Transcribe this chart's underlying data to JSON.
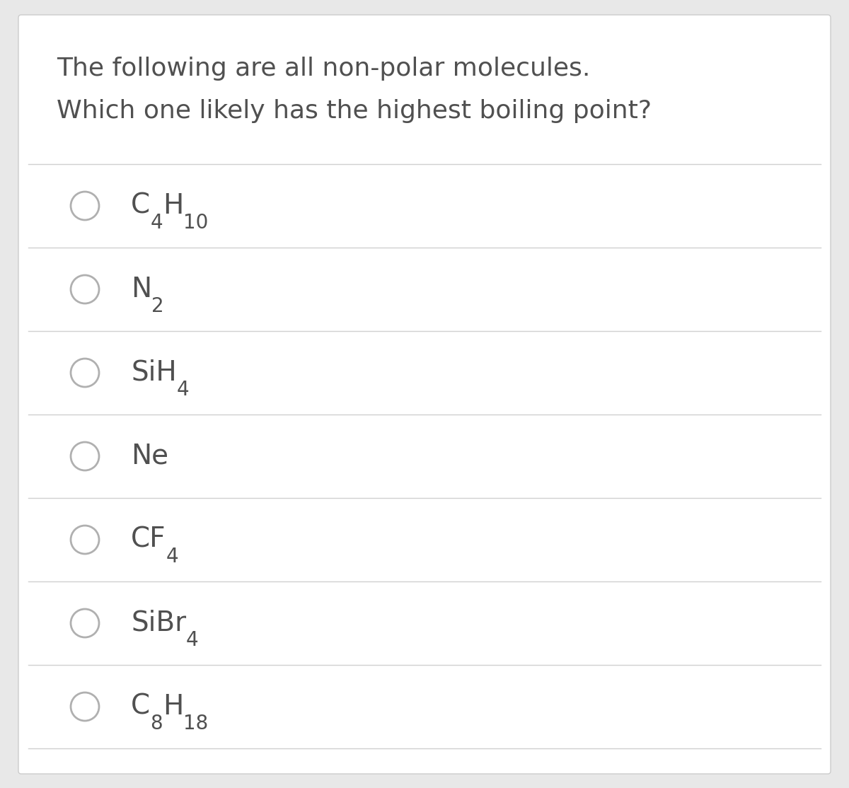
{
  "title_line1": "The following are all non-polar molecules.",
  "title_line2": "Which one likely has the highest boiling point?",
  "options": [
    [
      {
        "t": "C",
        "s": false
      },
      {
        "t": "4",
        "s": true
      },
      {
        "t": "H",
        "s": false
      },
      {
        "t": "10",
        "s": true
      }
    ],
    [
      {
        "t": "N",
        "s": false
      },
      {
        "t": "2",
        "s": true
      }
    ],
    [
      {
        "t": "SiH",
        "s": false
      },
      {
        "t": "4",
        "s": true
      }
    ],
    [
      {
        "t": "Ne",
        "s": false
      }
    ],
    [
      {
        "t": "CF",
        "s": false
      },
      {
        "t": "4",
        "s": true
      }
    ],
    [
      {
        "t": "SiBr",
        "s": false
      },
      {
        "t": "4",
        "s": true
      }
    ],
    [
      {
        "t": "C",
        "s": false
      },
      {
        "t": "8",
        "s": true
      },
      {
        "t": "H",
        "s": false
      },
      {
        "t": "18",
        "s": true
      }
    ]
  ],
  "background_color": "#e8e8e8",
  "card_color": "#ffffff",
  "text_color": "#505050",
  "line_color": "#d0d0d0",
  "circle_color": "#b0b0b0",
  "title_fontsize": 26,
  "option_fontsize": 28,
  "sub_fontsize": 20
}
